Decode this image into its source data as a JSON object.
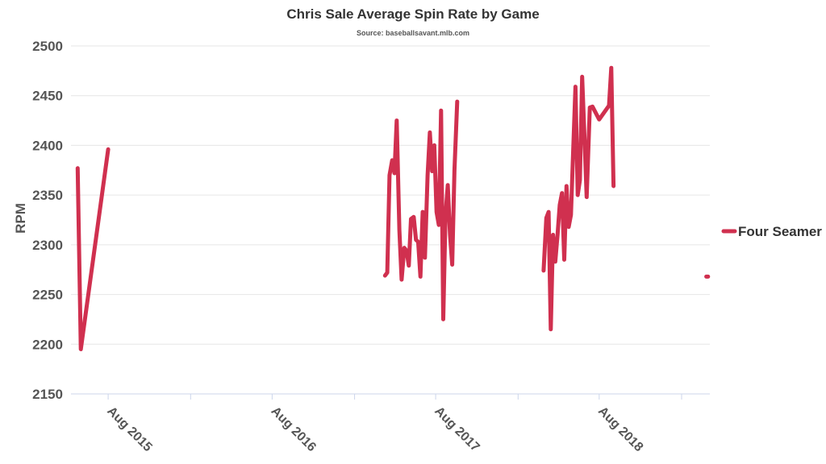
{
  "chart_data": {
    "type": "line",
    "title": "Chris Sale Average Spin Rate by Game",
    "subtitle": "Source: baseballsavant.mlb.com",
    "xlabel": "",
    "ylabel": "RPM",
    "ylim": [
      2150,
      2500
    ],
    "yticks": [
      2150,
      2200,
      2250,
      2300,
      2350,
      2400,
      2450,
      2500
    ],
    "x_type": "date",
    "xlim": [
      "2015-05-10",
      "2019-04-05"
    ],
    "xticks": [
      {
        "date": "2015-08-01",
        "label": "Aug 2015"
      },
      {
        "date": "2016-08-01",
        "label": "Aug 2016"
      },
      {
        "date": "2017-08-01",
        "label": "Aug 2017"
      },
      {
        "date": "2018-08-01",
        "label": "Aug 2018"
      }
    ],
    "x_minor_ticks": [
      "2016-02-01",
      "2017-02-01",
      "2018-02-01",
      "2019-02-01"
    ],
    "grid": true,
    "legend_position": "right",
    "series": [
      {
        "name": "Four Seamer",
        "color": "#d0304f",
        "segments": [
          [
            [
              "2015-05-25",
              2377
            ],
            [
              "2015-06-01",
              2195
            ],
            [
              "2015-08-01",
              2396
            ]
          ],
          [
            [
              "2017-04-10",
              2269
            ],
            [
              "2017-04-15",
              2272
            ],
            [
              "2017-04-20",
              2370
            ],
            [
              "2017-04-26",
              2385
            ],
            [
              "2017-05-01",
              2372
            ],
            [
              "2017-05-06",
              2425
            ],
            [
              "2017-05-12",
              2315
            ],
            [
              "2017-05-17",
              2265
            ],
            [
              "2017-05-23",
              2297
            ],
            [
              "2017-05-28",
              2294
            ],
            [
              "2017-06-02",
              2279
            ],
            [
              "2017-06-07",
              2326
            ],
            [
              "2017-06-13",
              2328
            ],
            [
              "2017-06-18",
              2305
            ],
            [
              "2017-06-23",
              2303
            ],
            [
              "2017-06-28",
              2268
            ],
            [
              "2017-07-03",
              2333
            ],
            [
              "2017-07-08",
              2287
            ],
            [
              "2017-07-14",
              2370
            ],
            [
              "2017-07-19",
              2413
            ],
            [
              "2017-07-24",
              2374
            ],
            [
              "2017-07-29",
              2400
            ],
            [
              "2017-08-03",
              2333
            ],
            [
              "2017-08-08",
              2320
            ],
            [
              "2017-08-13",
              2435
            ],
            [
              "2017-08-18",
              2225
            ],
            [
              "2017-08-23",
              2330
            ],
            [
              "2017-08-28",
              2360
            ],
            [
              "2017-09-02",
              2310
            ],
            [
              "2017-09-07",
              2280
            ],
            [
              "2017-09-12",
              2375
            ],
            [
              "2017-09-18",
              2444
            ]
          ],
          [
            [
              "2018-03-30",
              2274
            ],
            [
              "2018-04-05",
              2327
            ],
            [
              "2018-04-10",
              2333
            ],
            [
              "2018-04-15",
              2215
            ],
            [
              "2018-04-20",
              2310
            ],
            [
              "2018-04-25",
              2283
            ],
            [
              "2018-04-30",
              2310
            ],
            [
              "2018-05-05",
              2340
            ],
            [
              "2018-05-10",
              2352
            ],
            [
              "2018-05-15",
              2285
            ],
            [
              "2018-05-20",
              2359
            ],
            [
              "2018-05-25",
              2318
            ],
            [
              "2018-05-30",
              2330
            ],
            [
              "2018-06-04",
              2395
            ],
            [
              "2018-06-09",
              2459
            ],
            [
              "2018-06-14",
              2350
            ],
            [
              "2018-06-19",
              2365
            ],
            [
              "2018-06-24",
              2469
            ],
            [
              "2018-06-29",
              2410
            ],
            [
              "2018-07-04",
              2348
            ],
            [
              "2018-07-11",
              2438
            ],
            [
              "2018-07-17",
              2439
            ],
            [
              "2018-08-01",
              2426
            ],
            [
              "2018-08-23",
              2440
            ],
            [
              "2018-08-28",
              2478
            ],
            [
              "2018-09-02",
              2359
            ]
          ],
          [
            [
              "2019-03-28",
              2268
            ],
            [
              "2019-04-01",
              2268
            ]
          ]
        ]
      }
    ]
  }
}
